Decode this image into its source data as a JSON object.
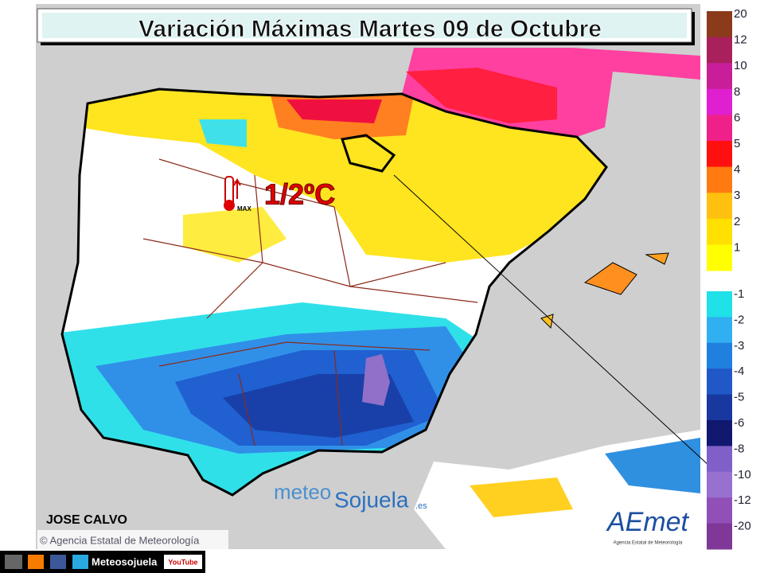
{
  "title": "Variación Máximas Martes 09 de Octubre",
  "annotation": {
    "value": "1/2ºC",
    "icon_label": "MAX"
  },
  "author": "JOSE CALVO",
  "credit": "© Agencia Estatal de Meteorología",
  "logos": {
    "meteo": "meteo",
    "sojuela": "Sojuela",
    "es": ".es",
    "aemet": "AEmet",
    "aemet_sub": "Agencia Estatal de Meteorología"
  },
  "social": {
    "name": "Meteosojuela",
    "youtube": "YouTube"
  },
  "legend": {
    "positive": {
      "labels": [
        "20",
        "12",
        "10",
        "8",
        "6",
        "5",
        "4",
        "3",
        "2",
        "1"
      ],
      "colors": [
        "#8b3a1a",
        "#a8205c",
        "#c81e9a",
        "#e020d0",
        "#f0208a",
        "#ff1010",
        "#ff7a10",
        "#ffc010",
        "#ffe000",
        "#ffff00"
      ]
    },
    "negative": {
      "labels": [
        "-1",
        "-2",
        "-3",
        "-4",
        "-5",
        "-6",
        "-8",
        "-10",
        "-12",
        "-20"
      ],
      "colors": [
        "#20e0e8",
        "#30b0f0",
        "#2080e0",
        "#2058c8",
        "#1838a0",
        "#101870",
        "#8060c8",
        "#9870d0",
        "#9050b8",
        "#803898"
      ]
    }
  }
}
